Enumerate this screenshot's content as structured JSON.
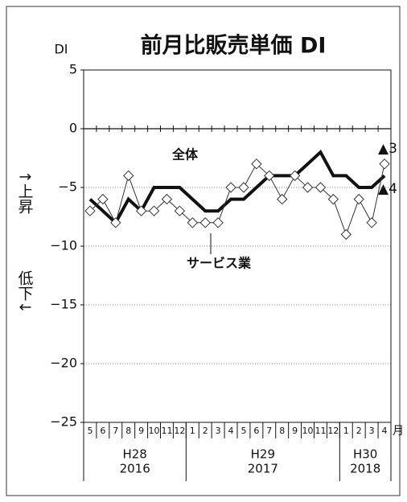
{
  "chart_data": {
    "type": "line",
    "title": "前月比販売単価 DI",
    "ylabel": "DI",
    "xlabel": "月",
    "categories": [
      "5",
      "6",
      "7",
      "8",
      "9",
      "10",
      "11",
      "12",
      "1",
      "2",
      "3",
      "4",
      "5",
      "6",
      "7",
      "8",
      "9",
      "10",
      "11",
      "12",
      "1",
      "2",
      "3",
      "4"
    ],
    "groups": [
      {
        "name": "H28",
        "year": "2016"
      },
      {
        "name": "H29",
        "year": "2017"
      },
      {
        "name": "H30",
        "year": "2018"
      }
    ],
    "series": [
      {
        "name": "全体",
        "color": "#111111",
        "marker": "none",
        "values": [
          -6,
          -7,
          -8,
          -6,
          -7,
          -5,
          -5,
          -5,
          -6,
          -7,
          -7,
          -6,
          -6,
          -5,
          -4,
          -4,
          -4,
          -3,
          -2,
          -4,
          -4,
          -5,
          -5,
          -4
        ]
      },
      {
        "name": "サービス業",
        "color": "#333333",
        "marker": "diamond",
        "values": [
          -7,
          -6,
          -8,
          -4,
          -7,
          -7,
          -6,
          -7,
          -8,
          -8,
          -8,
          -5,
          -5,
          -3,
          -4,
          -6,
          -4,
          -5,
          -5,
          -6,
          -9,
          -6,
          -8,
          -3
        ]
      }
    ],
    "ylim": [
      -25,
      5
    ],
    "yticks": [
      5,
      0,
      {
        "value": -5,
        "label": "−5"
      },
      {
        "value": -10,
        "label": "−10"
      },
      {
        "value": -15,
        "label": "−15"
      },
      {
        "value": -20,
        "label": "−20"
      },
      {
        "value": -25,
        "label": "−25"
      }
    ],
    "grid": true,
    "annotations": [
      "↑上昇",
      "低下↓",
      "▲3",
      "▲4"
    ]
  }
}
